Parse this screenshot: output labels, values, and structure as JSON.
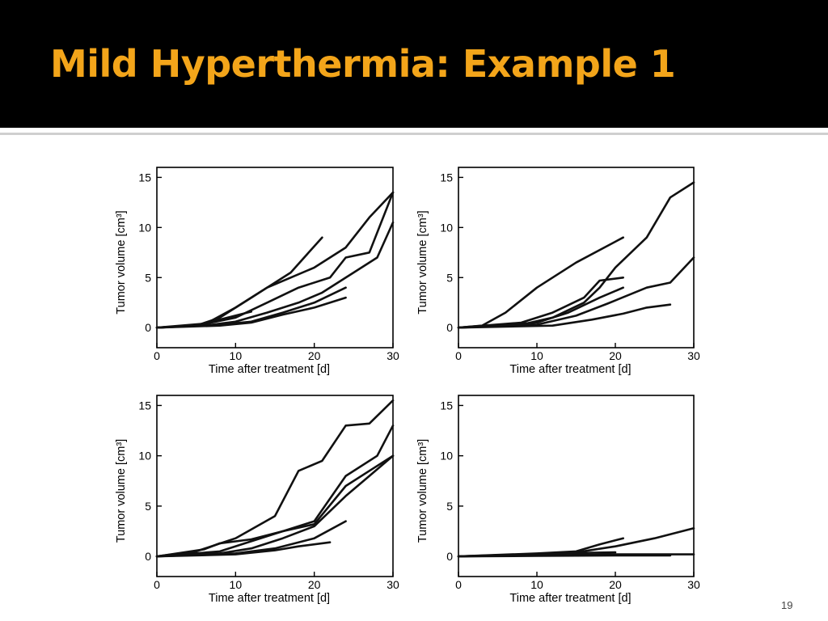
{
  "slide": {
    "title": "Mild Hyperthermia: Example 1",
    "page_number": "19"
  },
  "chart_data": [
    {
      "type": "line",
      "xlabel": "Time after treatment [d]",
      "ylabel": "Tumor volume [cm³]",
      "xlim": [
        0,
        30
      ],
      "ylim": [
        -2,
        16
      ],
      "xticks": [
        0,
        10,
        20,
        30
      ],
      "yticks": [
        0,
        5,
        10,
        15
      ],
      "grid": false,
      "series": [
        {
          "x": [
            0,
            5,
            8,
            12,
            14,
            17,
            21
          ],
          "y": [
            0,
            0.2,
            1,
            3,
            4,
            5.5,
            9
          ]
        },
        {
          "x": [
            0,
            6,
            10,
            14,
            17,
            20,
            24,
            27,
            30
          ],
          "y": [
            0,
            0.3,
            2,
            4,
            5,
            6,
            8,
            11,
            13.5
          ]
        },
        {
          "x": [
            0,
            5,
            10,
            14,
            18,
            22,
            24,
            27,
            30
          ],
          "y": [
            0,
            0.2,
            1,
            2.5,
            4,
            5,
            7,
            7.5,
            13.5
          ]
        },
        {
          "x": [
            0,
            6,
            10,
            14,
            18,
            21,
            25,
            28,
            30
          ],
          "y": [
            0,
            0.2,
            0.6,
            1.5,
            2.5,
            3.5,
            5.5,
            7,
            10.5
          ]
        },
        {
          "x": [
            0,
            8,
            12,
            16,
            20,
            24
          ],
          "y": [
            0,
            0.3,
            0.6,
            1.5,
            2.5,
            4
          ]
        },
        {
          "x": [
            0,
            8,
            12,
            16,
            20,
            24
          ],
          "y": [
            0,
            0.2,
            0.5,
            1.3,
            2,
            3
          ]
        },
        {
          "x": [
            0,
            6,
            9,
            12
          ],
          "y": [
            0,
            0.4,
            1,
            1.6
          ]
        }
      ]
    },
    {
      "type": "line",
      "xlabel": "Time after treatment [d]",
      "ylabel": "Tumor volume [cm³]",
      "xlim": [
        0,
        30
      ],
      "ylim": [
        -2,
        16
      ],
      "xticks": [
        0,
        10,
        20,
        30
      ],
      "yticks": [
        0,
        5,
        10,
        15
      ],
      "grid": false,
      "series": [
        {
          "x": [
            0,
            3,
            6,
            10,
            15,
            21
          ],
          "y": [
            0,
            0.2,
            1.5,
            4,
            6.5,
            9
          ]
        },
        {
          "x": [
            0,
            8,
            12,
            16,
            18,
            20,
            24,
            27,
            30
          ],
          "y": [
            0,
            0.3,
            1,
            2.5,
            4,
            6,
            9,
            13,
            14.5
          ]
        },
        {
          "x": [
            0,
            8,
            12,
            16,
            18,
            21
          ],
          "y": [
            0,
            0.5,
            1.5,
            3,
            4.7,
            5
          ]
        },
        {
          "x": [
            0,
            10,
            14,
            18,
            21
          ],
          "y": [
            0,
            0.5,
            1.5,
            3,
            4
          ]
        },
        {
          "x": [
            0,
            10,
            15,
            19,
            24,
            27,
            30
          ],
          "y": [
            0,
            0.3,
            1.2,
            2.4,
            4,
            4.5,
            7
          ]
        },
        {
          "x": [
            0,
            12,
            17,
            21,
            24,
            27
          ],
          "y": [
            0,
            0.2,
            0.8,
            1.4,
            2,
            2.3
          ]
        }
      ]
    },
    {
      "type": "line",
      "xlabel": "Time after treatment [d]",
      "ylabel": "Tumor volume [cm³]",
      "xlim": [
        0,
        30
      ],
      "ylim": [
        -2,
        16
      ],
      "xticks": [
        0,
        10,
        20,
        30
      ],
      "yticks": [
        0,
        5,
        10,
        15
      ],
      "grid": false,
      "series": [
        {
          "x": [
            0,
            5,
            10,
            15,
            18,
            21,
            24,
            27,
            30
          ],
          "y": [
            0,
            0.5,
            1.8,
            4,
            8.5,
            9.5,
            13,
            13.2,
            15.5
          ]
        },
        {
          "x": [
            0,
            8,
            12,
            16,
            20,
            24,
            28,
            30
          ],
          "y": [
            0,
            0.5,
            1.5,
            2.5,
            3.5,
            8,
            10,
            13
          ]
        },
        {
          "x": [
            0,
            6,
            8,
            12,
            16,
            20,
            24,
            27,
            30
          ],
          "y": [
            0,
            0.7,
            1.3,
            1.7,
            2.5,
            3.2,
            7,
            8.5,
            10
          ]
        },
        {
          "x": [
            0,
            8,
            12,
            16,
            20,
            24,
            27,
            30
          ],
          "y": [
            0,
            0.3,
            0.8,
            1.8,
            3,
            6,
            8,
            10
          ]
        },
        {
          "x": [
            0,
            10,
            15,
            20,
            24
          ],
          "y": [
            0,
            0.3,
            0.8,
            1.8,
            3.5
          ]
        },
        {
          "x": [
            0,
            10,
            15,
            18,
            22
          ],
          "y": [
            0,
            0.2,
            0.6,
            1,
            1.4
          ]
        }
      ]
    },
    {
      "type": "line",
      "xlabel": "Time after treatment [d]",
      "ylabel": "Tumor volume [cm³]",
      "xlim": [
        0,
        30
      ],
      "ylim": [
        -2,
        16
      ],
      "xticks": [
        0,
        10,
        20,
        30
      ],
      "yticks": [
        0,
        5,
        10,
        15
      ],
      "grid": false,
      "series": [
        {
          "x": [
            0,
            10,
            15,
            18,
            21
          ],
          "y": [
            0,
            0.3,
            0.5,
            1.2,
            1.8
          ]
        },
        {
          "x": [
            0,
            10,
            15,
            20,
            25,
            30
          ],
          "y": [
            0,
            0.2,
            0.4,
            1,
            1.8,
            2.8
          ]
        },
        {
          "x": [
            0,
            10,
            20,
            30
          ],
          "y": [
            0,
            0.1,
            0.2,
            0.2
          ]
        },
        {
          "x": [
            0,
            10,
            20,
            27
          ],
          "y": [
            0,
            0.05,
            0.1,
            0.1
          ]
        },
        {
          "x": [
            0,
            12,
            20
          ],
          "y": [
            0,
            0.3,
            0.4
          ]
        }
      ]
    }
  ]
}
